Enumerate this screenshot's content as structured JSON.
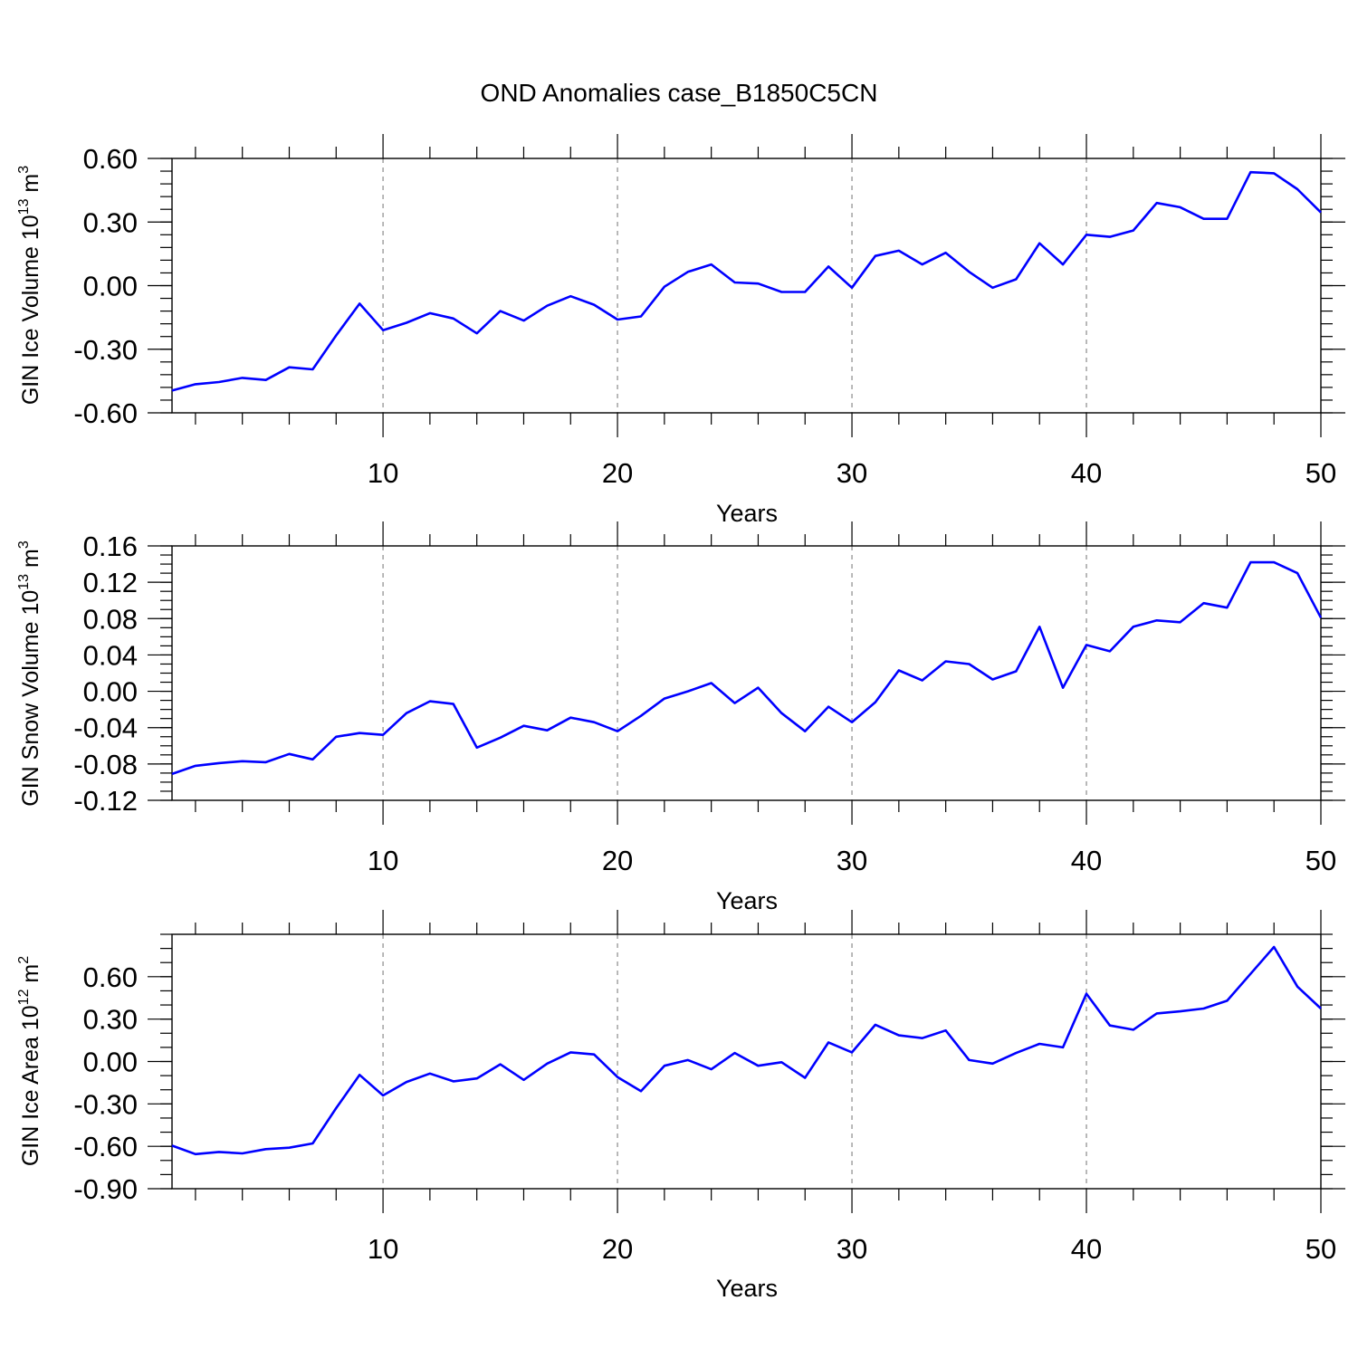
{
  "title": "OND Anomalies case_B1850C5CN",
  "line_color": "#0000ff",
  "chart_data": [
    {
      "type": "line",
      "xlabel": "Years",
      "ylabel": {
        "text": "GIN Ice Volume 10",
        "exponent": "13",
        "unit": "m",
        "unit_exponent": "3"
      },
      "xlim": [
        1,
        50
      ],
      "ylim": [
        -0.6,
        0.6
      ],
      "x_ticks": [
        10,
        20,
        30,
        40,
        50
      ],
      "x_tick_labels": [
        "10",
        "20",
        "30",
        "40",
        "50"
      ],
      "y_ticks": [
        -0.6,
        -0.3,
        0.0,
        0.3,
        0.6
      ],
      "y_tick_labels": [
        "-0.60",
        "-0.30",
        "0.00",
        "0.30",
        "0.60"
      ],
      "y_minor_step": 0.06,
      "grid_x": true,
      "x": [
        1,
        2,
        3,
        4,
        5,
        6,
        7,
        8,
        9,
        10,
        11,
        12,
        13,
        14,
        15,
        16,
        17,
        18,
        19,
        20,
        21,
        22,
        23,
        24,
        25,
        26,
        27,
        28,
        29,
        30,
        31,
        32,
        33,
        34,
        35,
        36,
        37,
        38,
        39,
        40,
        41,
        42,
        43,
        44,
        45,
        46,
        47,
        48,
        49,
        50
      ],
      "y": [
        -0.495,
        -0.465,
        -0.455,
        -0.435,
        -0.445,
        -0.385,
        -0.395,
        -0.235,
        -0.085,
        -0.21,
        -0.175,
        -0.13,
        -0.155,
        -0.225,
        -0.12,
        -0.165,
        -0.095,
        -0.05,
        -0.09,
        -0.16,
        -0.145,
        -0.005,
        0.065,
        0.1,
        0.015,
        0.01,
        -0.03,
        -0.03,
        0.09,
        -0.01,
        0.14,
        0.165,
        0.1,
        0.155,
        0.065,
        -0.01,
        0.03,
        0.2,
        0.1,
        0.24,
        0.23,
        0.26,
        0.39,
        0.37,
        0.315,
        0.315,
        0.535,
        0.53,
        0.455,
        0.345
      ]
    },
    {
      "type": "line",
      "xlabel": "Years",
      "ylabel": {
        "text": "GIN Snow Volume 10",
        "exponent": "13",
        "unit": "m",
        "unit_exponent": "3"
      },
      "xlim": [
        1,
        50
      ],
      "ylim": [
        -0.12,
        0.16
      ],
      "x_ticks": [
        10,
        20,
        30,
        40,
        50
      ],
      "x_tick_labels": [
        "10",
        "20",
        "30",
        "40",
        "50"
      ],
      "y_ticks": [
        -0.12,
        -0.08,
        -0.04,
        0.0,
        0.04,
        0.08,
        0.12,
        0.16
      ],
      "y_tick_labels": [
        "-0.12",
        "-0.08",
        "-0.04",
        "0.00",
        "0.04",
        "0.08",
        "0.12",
        "0.16"
      ],
      "y_minor_step": 0.01,
      "grid_x": true,
      "x": [
        1,
        2,
        3,
        4,
        5,
        6,
        7,
        8,
        9,
        10,
        11,
        12,
        13,
        14,
        15,
        16,
        17,
        18,
        19,
        20,
        21,
        22,
        23,
        24,
        25,
        26,
        27,
        28,
        29,
        30,
        31,
        32,
        33,
        34,
        35,
        36,
        37,
        38,
        39,
        40,
        41,
        42,
        43,
        44,
        45,
        46,
        47,
        48,
        49,
        50
      ],
      "y": [
        -0.091,
        -0.082,
        -0.079,
        -0.077,
        -0.078,
        -0.069,
        -0.075,
        -0.05,
        -0.046,
        -0.048,
        -0.024,
        -0.011,
        -0.014,
        -0.062,
        -0.051,
        -0.038,
        -0.043,
        -0.029,
        -0.034,
        -0.044,
        -0.027,
        -0.008,
        0.0,
        0.009,
        -0.013,
        0.004,
        -0.024,
        -0.044,
        -0.017,
        -0.034,
        -0.012,
        0.023,
        0.012,
        0.033,
        0.03,
        0.013,
        0.022,
        0.071,
        0.004,
        0.051,
        0.044,
        0.071,
        0.078,
        0.076,
        0.097,
        0.092,
        0.142,
        0.142,
        0.13,
        0.081
      ]
    },
    {
      "type": "line",
      "xlabel": "Years",
      "ylabel": {
        "text": "GIN Ice Area 10",
        "exponent": "12",
        "unit": "m",
        "unit_exponent": "2"
      },
      "xlim": [
        1,
        50
      ],
      "ylim": [
        -0.9,
        0.9
      ],
      "x_ticks": [
        10,
        20,
        30,
        40,
        50
      ],
      "x_tick_labels": [
        "10",
        "20",
        "30",
        "40",
        "50"
      ],
      "y_ticks": [
        -0.9,
        -0.6,
        -0.3,
        0.0,
        0.3,
        0.6
      ],
      "y_tick_labels": [
        "-0.90",
        "-0.60",
        "-0.30",
        "0.00",
        "0.30",
        "0.60"
      ],
      "y_minor_step": 0.1,
      "grid_x": true,
      "x": [
        1,
        2,
        3,
        4,
        5,
        6,
        7,
        8,
        9,
        10,
        11,
        12,
        13,
        14,
        15,
        16,
        17,
        18,
        19,
        20,
        21,
        22,
        23,
        24,
        25,
        26,
        27,
        28,
        29,
        30,
        31,
        32,
        33,
        34,
        35,
        36,
        37,
        38,
        39,
        40,
        41,
        42,
        43,
        44,
        45,
        46,
        47,
        48,
        49,
        50
      ],
      "y": [
        -0.595,
        -0.655,
        -0.64,
        -0.65,
        -0.62,
        -0.61,
        -0.58,
        -0.33,
        -0.095,
        -0.24,
        -0.145,
        -0.085,
        -0.14,
        -0.12,
        -0.02,
        -0.13,
        -0.015,
        0.065,
        0.05,
        -0.11,
        -0.21,
        -0.03,
        0.01,
        -0.055,
        0.06,
        -0.03,
        -0.005,
        -0.115,
        0.135,
        0.065,
        0.26,
        0.185,
        0.165,
        0.22,
        0.01,
        -0.015,
        0.06,
        0.125,
        0.1,
        0.48,
        0.255,
        0.225,
        0.34,
        0.355,
        0.375,
        0.43,
        0.62,
        0.81,
        0.53,
        0.375
      ]
    }
  ]
}
